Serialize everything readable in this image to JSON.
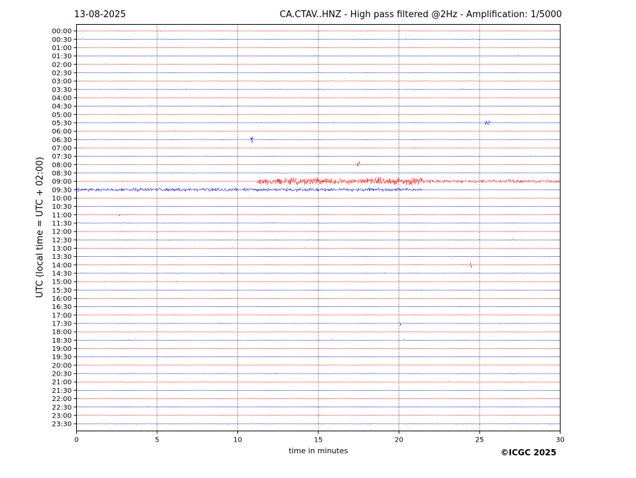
{
  "chart_data": {
    "type": "line",
    "subtype": "helicorder",
    "date": "13-08-2025",
    "title": "CA.CTAV..HNZ - High pass filtered @2Hz - Amplification: 1/5000",
    "xlabel": "time in minutes",
    "ylabel": "UTC (local time = UTC + 02:00)",
    "copyright": "©ICGC 2025",
    "xlim": [
      0,
      30
    ],
    "x_ticks": [
      "0",
      "5",
      "10",
      "15",
      "20",
      "25",
      "30"
    ],
    "x_tick_values": [
      0,
      5,
      10,
      15,
      20,
      25,
      30
    ],
    "vertical_gridlines": [
      5,
      10,
      15,
      20,
      25
    ],
    "trace_colors": [
      "#ff0000",
      "#0000ff"
    ],
    "rows": [
      "00:00",
      "00:30",
      "01:00",
      "01:30",
      "02:00",
      "02:30",
      "03:00",
      "03:30",
      "04:00",
      "04:30",
      "05:00",
      "05:30",
      "06:00",
      "06:30",
      "07:00",
      "07:30",
      "08:00",
      "08:30",
      "09:00",
      "09:30",
      "10:00",
      "10:30",
      "11:00",
      "11:30",
      "12:00",
      "12:30",
      "13:00",
      "13:30",
      "14:00",
      "14:30",
      "15:00",
      "15:30",
      "16:00",
      "16:30",
      "17:00",
      "17:30",
      "18:00",
      "18:30",
      "19:00",
      "19:30",
      "20:00",
      "20:30",
      "21:00",
      "21:30",
      "22:00",
      "22:30",
      "23:00",
      "23:30"
    ],
    "events": [
      {
        "row": "09:00",
        "start_min": 11.2,
        "end_min": 21.5,
        "amplitude": "high"
      },
      {
        "row": "09:00",
        "start_min": 21.5,
        "end_min": 30,
        "amplitude": "medium"
      },
      {
        "row": "09:30",
        "start_min": 0,
        "end_min": 21.5,
        "amplitude": "medium"
      },
      {
        "row": "11:00",
        "start_min": 2.6,
        "end_min": 2.7,
        "amplitude": "high"
      },
      {
        "row": "14:00",
        "start_min": 24.4,
        "end_min": 24.5,
        "amplitude": "high"
      },
      {
        "row": "17:30",
        "start_min": 20.0,
        "end_min": 20.1,
        "amplitude": "medium"
      },
      {
        "row": "06:30",
        "start_min": 10.8,
        "end_min": 11.0,
        "amplitude": "medium"
      },
      {
        "row": "05:30",
        "start_min": 25.3,
        "end_min": 25.7,
        "amplitude": "medium"
      },
      {
        "row": "08:00",
        "start_min": 17.4,
        "end_min": 17.6,
        "amplitude": "medium"
      }
    ]
  }
}
